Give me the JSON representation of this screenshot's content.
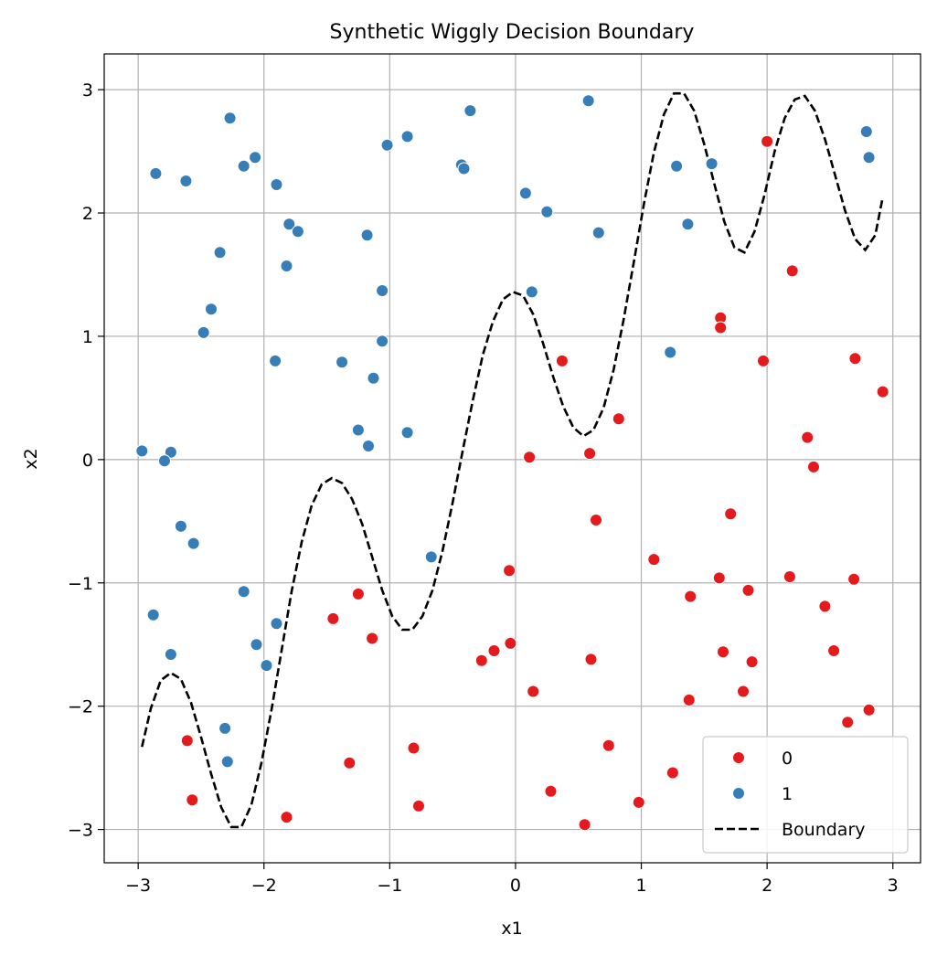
{
  "chart_data": {
    "type": "scatter",
    "title": "Synthetic Wiggly Decision Boundary",
    "xlabel": "x1",
    "ylabel": "x2",
    "xlim": [
      -3.27,
      3.22
    ],
    "ylim": [
      -3.27,
      3.29
    ],
    "xticks": [
      -3,
      -2,
      -1,
      0,
      1,
      2,
      3
    ],
    "yticks": [
      -3,
      -2,
      -1,
      0,
      1,
      2,
      3
    ],
    "grid": true,
    "legend_position": "lower-right",
    "colors": {
      "class0": "#e41a1c",
      "class1": "#377eb8",
      "boundary": "#000000",
      "grid": "#b0b0b0"
    },
    "legend": [
      {
        "label": "0",
        "kind": "marker",
        "color": "#e41a1c"
      },
      {
        "label": "1",
        "kind": "marker",
        "color": "#377eb8"
      },
      {
        "label": "Boundary",
        "kind": "dashed-line",
        "color": "#000000"
      }
    ],
    "series": [
      {
        "name": "0",
        "points": [
          [
            2.0,
            2.58
          ],
          [
            2.2,
            1.53
          ],
          [
            1.63,
            1.15
          ],
          [
            1.63,
            1.07
          ],
          [
            1.97,
            0.8
          ],
          [
            2.7,
            0.82
          ],
          [
            2.92,
            0.55
          ],
          [
            0.37,
            0.8
          ],
          [
            0.82,
            0.33
          ],
          [
            0.11,
            0.02
          ],
          [
            0.59,
            0.05
          ],
          [
            2.32,
            0.18
          ],
          [
            2.37,
            -0.06
          ],
          [
            0.64,
            -0.49
          ],
          [
            1.71,
            -0.44
          ],
          [
            1.1,
            -0.81
          ],
          [
            -0.05,
            -0.9
          ],
          [
            1.62,
            -0.96
          ],
          [
            2.18,
            -0.95
          ],
          [
            2.69,
            -0.97
          ],
          [
            1.85,
            -1.06
          ],
          [
            1.39,
            -1.11
          ],
          [
            2.46,
            -1.19
          ],
          [
            -1.25,
            -1.09
          ],
          [
            -1.45,
            -1.29
          ],
          [
            -1.14,
            -1.45
          ],
          [
            -0.04,
            -1.49
          ],
          [
            -0.17,
            -1.55
          ],
          [
            -0.27,
            -1.63
          ],
          [
            0.6,
            -1.62
          ],
          [
            1.65,
            -1.56
          ],
          [
            1.88,
            -1.64
          ],
          [
            2.53,
            -1.55
          ],
          [
            0.14,
            -1.88
          ],
          [
            1.81,
            -1.88
          ],
          [
            1.38,
            -1.95
          ],
          [
            2.81,
            -2.03
          ],
          [
            2.64,
            -2.13
          ],
          [
            -2.61,
            -2.28
          ],
          [
            -0.81,
            -2.34
          ],
          [
            0.74,
            -2.32
          ],
          [
            -1.32,
            -2.46
          ],
          [
            1.25,
            -2.54
          ],
          [
            -2.57,
            -2.76
          ],
          [
            0.28,
            -2.69
          ],
          [
            -0.77,
            -2.81
          ],
          [
            0.98,
            -2.78
          ],
          [
            -1.82,
            -2.9
          ],
          [
            0.55,
            -2.96
          ]
        ]
      },
      {
        "name": "1",
        "points": [
          [
            0.58,
            2.91
          ],
          [
            -2.27,
            2.77
          ],
          [
            -0.36,
            2.83
          ],
          [
            -0.86,
            2.62
          ],
          [
            -1.02,
            2.55
          ],
          [
            -2.07,
            2.45
          ],
          [
            -2.16,
            2.38
          ],
          [
            -0.43,
            2.39
          ],
          [
            -0.41,
            2.36
          ],
          [
            -2.86,
            2.32
          ],
          [
            -2.62,
            2.26
          ],
          [
            -1.9,
            2.23
          ],
          [
            2.79,
            2.66
          ],
          [
            2.81,
            2.45
          ],
          [
            1.56,
            2.4
          ],
          [
            1.28,
            2.38
          ],
          [
            0.08,
            2.16
          ],
          [
            0.25,
            2.01
          ],
          [
            -1.8,
            1.91
          ],
          [
            -1.73,
            1.85
          ],
          [
            1.37,
            1.91
          ],
          [
            0.66,
            1.84
          ],
          [
            -1.18,
            1.82
          ],
          [
            -2.35,
            1.68
          ],
          [
            -1.82,
            1.57
          ],
          [
            -1.06,
            1.37
          ],
          [
            0.13,
            1.36
          ],
          [
            -2.42,
            1.22
          ],
          [
            -2.48,
            1.03
          ],
          [
            -1.06,
            0.96
          ],
          [
            1.23,
            0.87
          ],
          [
            -1.91,
            0.8
          ],
          [
            -1.38,
            0.79
          ],
          [
            -1.13,
            0.66
          ],
          [
            -1.25,
            0.24
          ],
          [
            -0.86,
            0.22
          ],
          [
            -1.17,
            0.11
          ],
          [
            -2.97,
            0.07
          ],
          [
            -2.74,
            0.06
          ],
          [
            -2.79,
            -0.01
          ],
          [
            -2.66,
            -0.54
          ],
          [
            -2.56,
            -0.68
          ],
          [
            -0.67,
            -0.79
          ],
          [
            -2.16,
            -1.07
          ],
          [
            -2.88,
            -1.26
          ],
          [
            -1.9,
            -1.33
          ],
          [
            -2.06,
            -1.5
          ],
          [
            -1.98,
            -1.67
          ],
          [
            -2.74,
            -1.58
          ],
          [
            -2.31,
            -2.18
          ],
          [
            -2.29,
            -2.45
          ]
        ]
      }
    ],
    "boundary": {
      "name": "Boundary",
      "x": [
        -2.97,
        -2.9,
        -2.82,
        -2.74,
        -2.66,
        -2.58,
        -2.5,
        -2.42,
        -2.34,
        -2.26,
        -2.18,
        -2.1,
        -2.02,
        -1.94,
        -1.86,
        -1.78,
        -1.7,
        -1.62,
        -1.54,
        -1.46,
        -1.38,
        -1.3,
        -1.22,
        -1.14,
        -1.06,
        -0.98,
        -0.9,
        -0.82,
        -0.74,
        -0.66,
        -0.58,
        -0.5,
        -0.42,
        -0.34,
        -0.26,
        -0.18,
        -0.1,
        -0.02,
        0.06,
        0.14,
        0.22,
        0.3,
        0.38,
        0.46,
        0.54,
        0.62,
        0.7,
        0.78,
        0.86,
        0.94,
        1.02,
        1.1,
        1.18,
        1.26,
        1.34,
        1.42,
        1.5,
        1.58,
        1.66,
        1.74,
        1.82,
        1.9,
        1.98,
        2.06,
        2.14,
        2.22,
        2.3,
        2.38,
        2.46,
        2.54,
        2.62,
        2.7,
        2.78,
        2.86,
        2.92
      ],
      "y": [
        -2.33,
        -2.02,
        -1.79,
        -1.73,
        -1.78,
        -1.97,
        -2.25,
        -2.55,
        -2.82,
        -2.98,
        -2.98,
        -2.8,
        -2.46,
        -2.03,
        -1.55,
        -1.07,
        -0.67,
        -0.37,
        -0.2,
        -0.15,
        -0.19,
        -0.32,
        -0.52,
        -0.79,
        -1.06,
        -1.27,
        -1.38,
        -1.38,
        -1.27,
        -1.06,
        -0.74,
        -0.35,
        0.07,
        0.48,
        0.85,
        1.12,
        1.3,
        1.36,
        1.33,
        1.18,
        0.94,
        0.67,
        0.43,
        0.26,
        0.19,
        0.24,
        0.42,
        0.73,
        1.14,
        1.6,
        2.07,
        2.49,
        2.8,
        2.97,
        2.97,
        2.83,
        2.56,
        2.24,
        1.93,
        1.72,
        1.68,
        1.85,
        2.15,
        2.5,
        2.77,
        2.92,
        2.95,
        2.83,
        2.6,
        2.31,
        2.02,
        1.79,
        1.7,
        1.82,
        2.13
      ]
    }
  }
}
